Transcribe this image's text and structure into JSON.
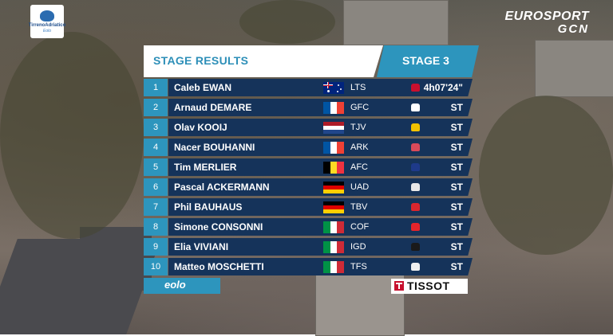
{
  "race_logo": {
    "line1": "TirrenoAdriatico",
    "line2": "Eolo"
  },
  "broadcaster": {
    "line1": "EUROSPORT",
    "line2": "GCN"
  },
  "header": {
    "title": "STAGE RESULTS",
    "stage": "STAGE 3"
  },
  "results": [
    {
      "pos": "1",
      "first": "Caleb",
      "last": "EWAN",
      "flag": "australia-flag",
      "team": "LTS",
      "time": "4h07'24\"",
      "jersey_color": "#c8102e"
    },
    {
      "pos": "2",
      "first": "Arnaud",
      "last": "DEMARE",
      "flag": "france-flag",
      "team": "GFC",
      "time": "ST",
      "jersey_color": "#ffffff"
    },
    {
      "pos": "3",
      "first": "Olav",
      "last": "KOOIJ",
      "flag": "netherlands-flag",
      "team": "TJV",
      "time": "ST",
      "jersey_color": "#f2c300"
    },
    {
      "pos": "4",
      "first": "Nacer",
      "last": "BOUHANNI",
      "flag": "france-flag",
      "team": "ARK",
      "time": "ST",
      "jersey_color": "#d94a5a"
    },
    {
      "pos": "5",
      "first": "Tim",
      "last": "MERLIER",
      "flag": "belgium-flag",
      "team": "AFC",
      "time": "ST",
      "jersey_color": "#1e3a8a"
    },
    {
      "pos": "6",
      "first": "Pascal",
      "last": "ACKERMANN",
      "flag": "germany-flag",
      "team": "UAD",
      "time": "ST",
      "jersey_color": "#e8e8e8"
    },
    {
      "pos": "7",
      "first": "Phil",
      "last": "BAUHAUS",
      "flag": "germany-flag",
      "team": "TBV",
      "time": "ST",
      "jersey_color": "#d9262e"
    },
    {
      "pos": "8",
      "first": "Simone",
      "last": "CONSONNI",
      "flag": "italy-flag",
      "team": "COF",
      "time": "ST",
      "jersey_color": "#e3242b"
    },
    {
      "pos": "9",
      "first": "Elia",
      "last": "VIVIANI",
      "flag": "italy-flag",
      "team": "IGD",
      "time": "ST",
      "jersey_color": "#1a1a1a"
    },
    {
      "pos": "10",
      "first": "Matteo",
      "last": "MOSCHETTI",
      "flag": "italy-flag",
      "team": "TFS",
      "time": "ST",
      "jersey_color": "#f0f0f0"
    }
  ],
  "sponsors": {
    "left": "eolo",
    "right": "TISSOT"
  },
  "colors": {
    "accent": "#2d95bd",
    "row": "#15335a"
  }
}
